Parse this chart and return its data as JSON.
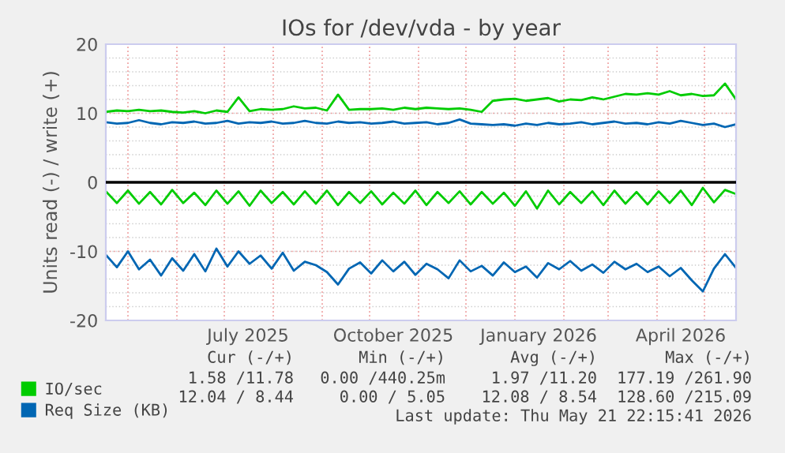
{
  "chart_data": {
    "type": "line",
    "title": "IOs for /dev/vda - by year",
    "ylabel": "Units read (-) / write (+)",
    "x": [
      "2025-04-17",
      "2025-04-24",
      "2025-05-01",
      "2025-05-08",
      "2025-05-15",
      "2025-05-22",
      "2025-05-29",
      "2025-06-05",
      "2025-06-12",
      "2025-06-19",
      "2025-06-26",
      "2025-07-03",
      "2025-07-10",
      "2025-07-17",
      "2025-07-24",
      "2025-07-31",
      "2025-08-07",
      "2025-08-14",
      "2025-08-21",
      "2025-08-28",
      "2025-09-04",
      "2025-09-11",
      "2025-09-18",
      "2025-09-25",
      "2025-10-02",
      "2025-10-09",
      "2025-10-16",
      "2025-10-23",
      "2025-10-30",
      "2025-11-06",
      "2025-11-13",
      "2025-11-20",
      "2025-11-27",
      "2025-12-04",
      "2025-12-11",
      "2025-12-18",
      "2025-12-25",
      "2026-01-01",
      "2026-01-08",
      "2026-01-15",
      "2026-01-22",
      "2026-01-29",
      "2026-02-05",
      "2026-02-12",
      "2026-02-19",
      "2026-02-26",
      "2026-03-05",
      "2026-03-12",
      "2026-03-19",
      "2026-03-26",
      "2026-04-02",
      "2026-04-09",
      "2026-04-16",
      "2026-04-23",
      "2026-04-30",
      "2026-05-07",
      "2026-05-14",
      "2026-05-21"
    ],
    "series": [
      {
        "name": "IO/sec",
        "color": "#00cc00",
        "values": [
          10.2,
          10.4,
          10.3,
          10.5,
          10.3,
          10.4,
          10.2,
          10.1,
          10.3,
          10.0,
          10.4,
          10.2,
          12.3,
          10.3,
          10.6,
          10.5,
          10.6,
          11.0,
          10.7,
          10.8,
          10.4,
          12.7,
          10.5,
          10.6,
          10.6,
          10.7,
          10.5,
          10.8,
          10.6,
          10.8,
          10.7,
          10.6,
          10.7,
          10.5,
          10.2,
          11.8,
          12.0,
          12.1,
          11.8,
          12.0,
          12.2,
          11.7,
          12.0,
          11.9,
          12.3,
          12.0,
          12.4,
          12.8,
          12.7,
          12.9,
          12.7,
          13.2,
          12.6,
          12.8,
          12.5,
          12.6,
          14.3,
          12.0
        ]
      },
      {
        "color": "#00cc00",
        "values": [
          -1.3,
          -3.0,
          -1.2,
          -3.1,
          -1.4,
          -3.2,
          -1.1,
          -3.0,
          -1.5,
          -3.3,
          -1.2,
          -3.1,
          -1.3,
          -3.4,
          -1.2,
          -3.0,
          -1.4,
          -3.2,
          -1.3,
          -3.1,
          -1.2,
          -3.3,
          -1.4,
          -3.0,
          -1.3,
          -3.2,
          -1.5,
          -3.1,
          -1.2,
          -3.3,
          -1.4,
          -3.0,
          -1.3,
          -3.2,
          -1.4,
          -3.1,
          -1.5,
          -3.4,
          -1.3,
          -3.8,
          -1.2,
          -3.2,
          -1.4,
          -3.0,
          -1.3,
          -3.3,
          -1.2,
          -3.1,
          -1.4,
          -3.2,
          -1.3,
          -3.0,
          -1.2,
          -3.3,
          -0.8,
          -2.9,
          -1.1,
          -1.7
        ]
      },
      {
        "name": "Req Size (KB)",
        "color": "#0066b3",
        "values": [
          8.7,
          8.5,
          8.6,
          9.0,
          8.6,
          8.4,
          8.7,
          8.6,
          8.8,
          8.5,
          8.6,
          8.9,
          8.5,
          8.7,
          8.6,
          8.8,
          8.5,
          8.6,
          8.9,
          8.6,
          8.5,
          8.8,
          8.6,
          8.7,
          8.5,
          8.6,
          8.8,
          8.5,
          8.6,
          8.7,
          8.4,
          8.6,
          9.1,
          8.5,
          8.4,
          8.3,
          8.4,
          8.2,
          8.5,
          8.3,
          8.6,
          8.4,
          8.5,
          8.7,
          8.4,
          8.6,
          8.8,
          8.5,
          8.6,
          8.4,
          8.7,
          8.5,
          8.9,
          8.6,
          8.3,
          8.5,
          8.0,
          8.4
        ]
      },
      {
        "color": "#0066b3",
        "values": [
          -10.5,
          -12.3,
          -10.0,
          -12.6,
          -11.2,
          -13.5,
          -11.0,
          -12.8,
          -10.4,
          -12.9,
          -9.6,
          -12.2,
          -10.0,
          -11.8,
          -10.6,
          -12.5,
          -10.2,
          -12.8,
          -11.5,
          -12.0,
          -13.0,
          -14.8,
          -12.5,
          -11.6,
          -13.2,
          -11.3,
          -12.9,
          -11.5,
          -13.4,
          -11.8,
          -12.6,
          -13.9,
          -11.3,
          -12.9,
          -12.1,
          -13.5,
          -11.6,
          -13.0,
          -12.2,
          -13.8,
          -11.7,
          -12.6,
          -11.4,
          -12.8,
          -11.9,
          -13.1,
          -11.5,
          -12.6,
          -11.8,
          -13.0,
          -12.2,
          -13.6,
          -12.4,
          -14.2,
          -15.8,
          -12.5,
          -10.4,
          -12.4
        ]
      }
    ],
    "xlim": [
      "2025-04-17",
      "2026-05-21"
    ],
    "xticks": [
      {
        "value": "2025-05-01",
        "label": null
      },
      {
        "value": "2025-06-01",
        "label": null
      },
      {
        "value": "2025-07-01",
        "label": null
      },
      {
        "value": "2025-07-16",
        "label": "July 2025"
      },
      {
        "value": "2025-08-01",
        "label": null
      },
      {
        "value": "2025-09-01",
        "label": null
      },
      {
        "value": "2025-10-01",
        "label": null
      },
      {
        "value": "2025-10-16",
        "label": "October 2025"
      },
      {
        "value": "2025-11-01",
        "label": null
      },
      {
        "value": "2025-12-01",
        "label": null
      },
      {
        "value": "2026-01-01",
        "label": null
      },
      {
        "value": "2026-01-16",
        "label": "January 2026"
      },
      {
        "value": "2026-02-01",
        "label": null
      },
      {
        "value": "2026-03-01",
        "label": null
      },
      {
        "value": "2026-04-01",
        "label": null
      },
      {
        "value": "2026-04-16",
        "label": "April 2026"
      },
      {
        "value": "2026-05-01",
        "label": null
      }
    ],
    "ylim": [
      -20,
      20
    ],
    "yticks": [
      -20,
      -10,
      0,
      10,
      20
    ],
    "grid": true,
    "legend": "bottom left",
    "ref_lines": [
      {
        "axis": "y",
        "value": 0,
        "color": "#000000"
      }
    ],
    "annotations": [
      "Cur (-/+)",
      "Min (-/+)",
      "Avg (-/+)",
      "Max (-/+)",
      "1.58 /11.78",
      "0.00 /440.25m",
      "1.97 /11.20",
      "177.19 /261.90",
      "12.04 / 8.44",
      "0.00 / 5.05",
      "12.08 / 8.54",
      "128.60 /215.09",
      "Last update: Thu May 21 22:15:41 2026"
    ]
  }
}
